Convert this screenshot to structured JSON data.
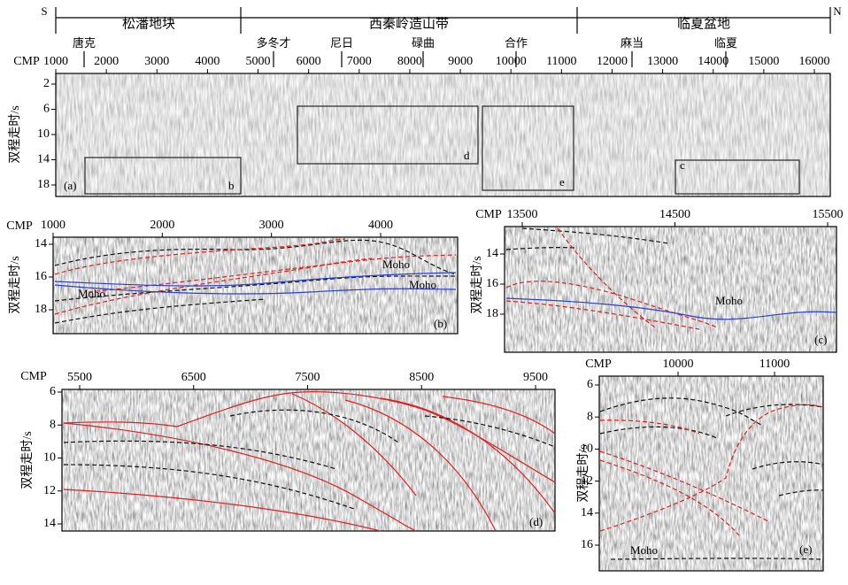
{
  "top": {
    "directions": [
      "S",
      "N"
    ],
    "regions": [
      "松潘地块",
      "西秦岭造山带",
      "临夏盆地"
    ],
    "places": [
      "唐克",
      "多冬才",
      "尼日",
      "碌曲",
      "合作",
      "麻当",
      "临夏"
    ],
    "xlabel": "CMP",
    "xticks": [
      1000,
      2000,
      3000,
      4000,
      5000,
      6000,
      7000,
      8000,
      9000,
      10000,
      11000,
      12000,
      13000,
      14000,
      15000,
      16000
    ],
    "ylabel": "双程走时/s",
    "yticks": [
      2,
      6,
      10,
      14,
      18
    ],
    "label": "(a)",
    "boxes": [
      "b",
      "d",
      "e",
      "c"
    ]
  },
  "panel_b": {
    "xlabel": "CMP",
    "xticks": [
      1000,
      2000,
      3000,
      4000
    ],
    "ylabel": "双程走时/s",
    "yticks": [
      14,
      16,
      18
    ],
    "annotations": [
      "Moho",
      "Moho",
      "Moho"
    ],
    "label": "(b)"
  },
  "panel_c": {
    "xlabel": "CMP",
    "xticks": [
      13500,
      14500,
      15500
    ],
    "ylabel": "双程走时/s",
    "yticks": [
      14,
      16,
      18
    ],
    "annotations": [
      "Moho"
    ],
    "label": "(c)"
  },
  "panel_d": {
    "xlabel": "CMP",
    "xticks": [
      5500,
      6500,
      7500,
      8500,
      9500
    ],
    "ylabel": "双程走时/s",
    "yticks": [
      6,
      8,
      10,
      12,
      14
    ],
    "label": "(d)"
  },
  "panel_e": {
    "xlabel": "CMP",
    "xticks": [
      10000,
      11000
    ],
    "ylabel": "双程走时/s",
    "yticks": [
      6,
      8,
      10,
      12,
      14,
      16
    ],
    "annotations": [
      "Moho"
    ],
    "label": "(e)"
  }
}
